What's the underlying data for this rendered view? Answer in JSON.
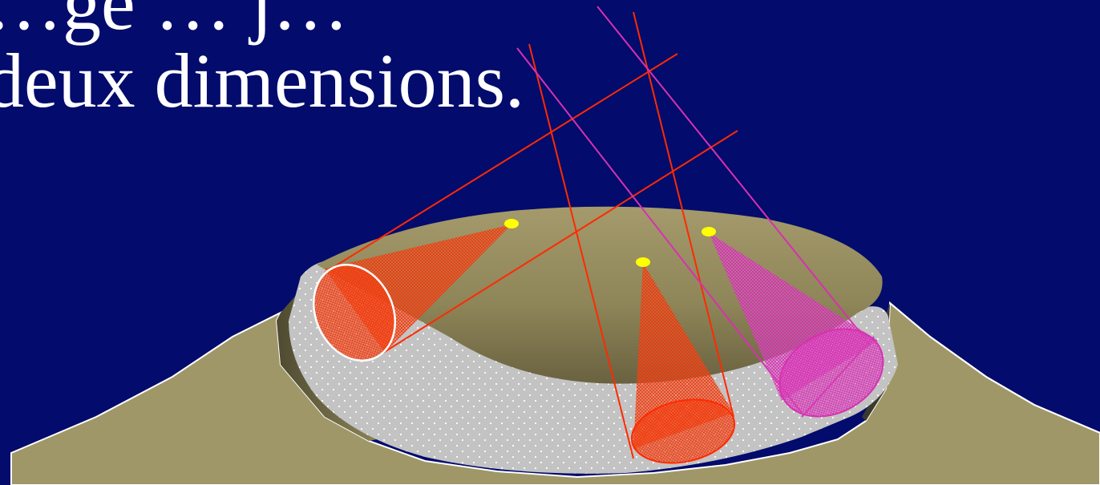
{
  "slide": {
    "title_line1": "…ge … j…",
    "title_line2": "deux  dimensions."
  },
  "diagram": {
    "colors": {
      "background": "#030b6c",
      "ground": "#a09768",
      "trough_floor": "#c3c3c3",
      "crater_dark": "#6a6240",
      "red_beam": "#ff2a00",
      "red_cone": "#ff4a1a",
      "magenta_beam": "#d631b0",
      "magenta_cone": "#e050c0",
      "source_dot": "#ffff00",
      "outline": "#ffffff"
    },
    "sources": [
      {
        "name": "source-left",
        "color": "red"
      },
      {
        "name": "source-center",
        "color": "red"
      },
      {
        "name": "source-right",
        "color": "magenta"
      }
    ]
  }
}
